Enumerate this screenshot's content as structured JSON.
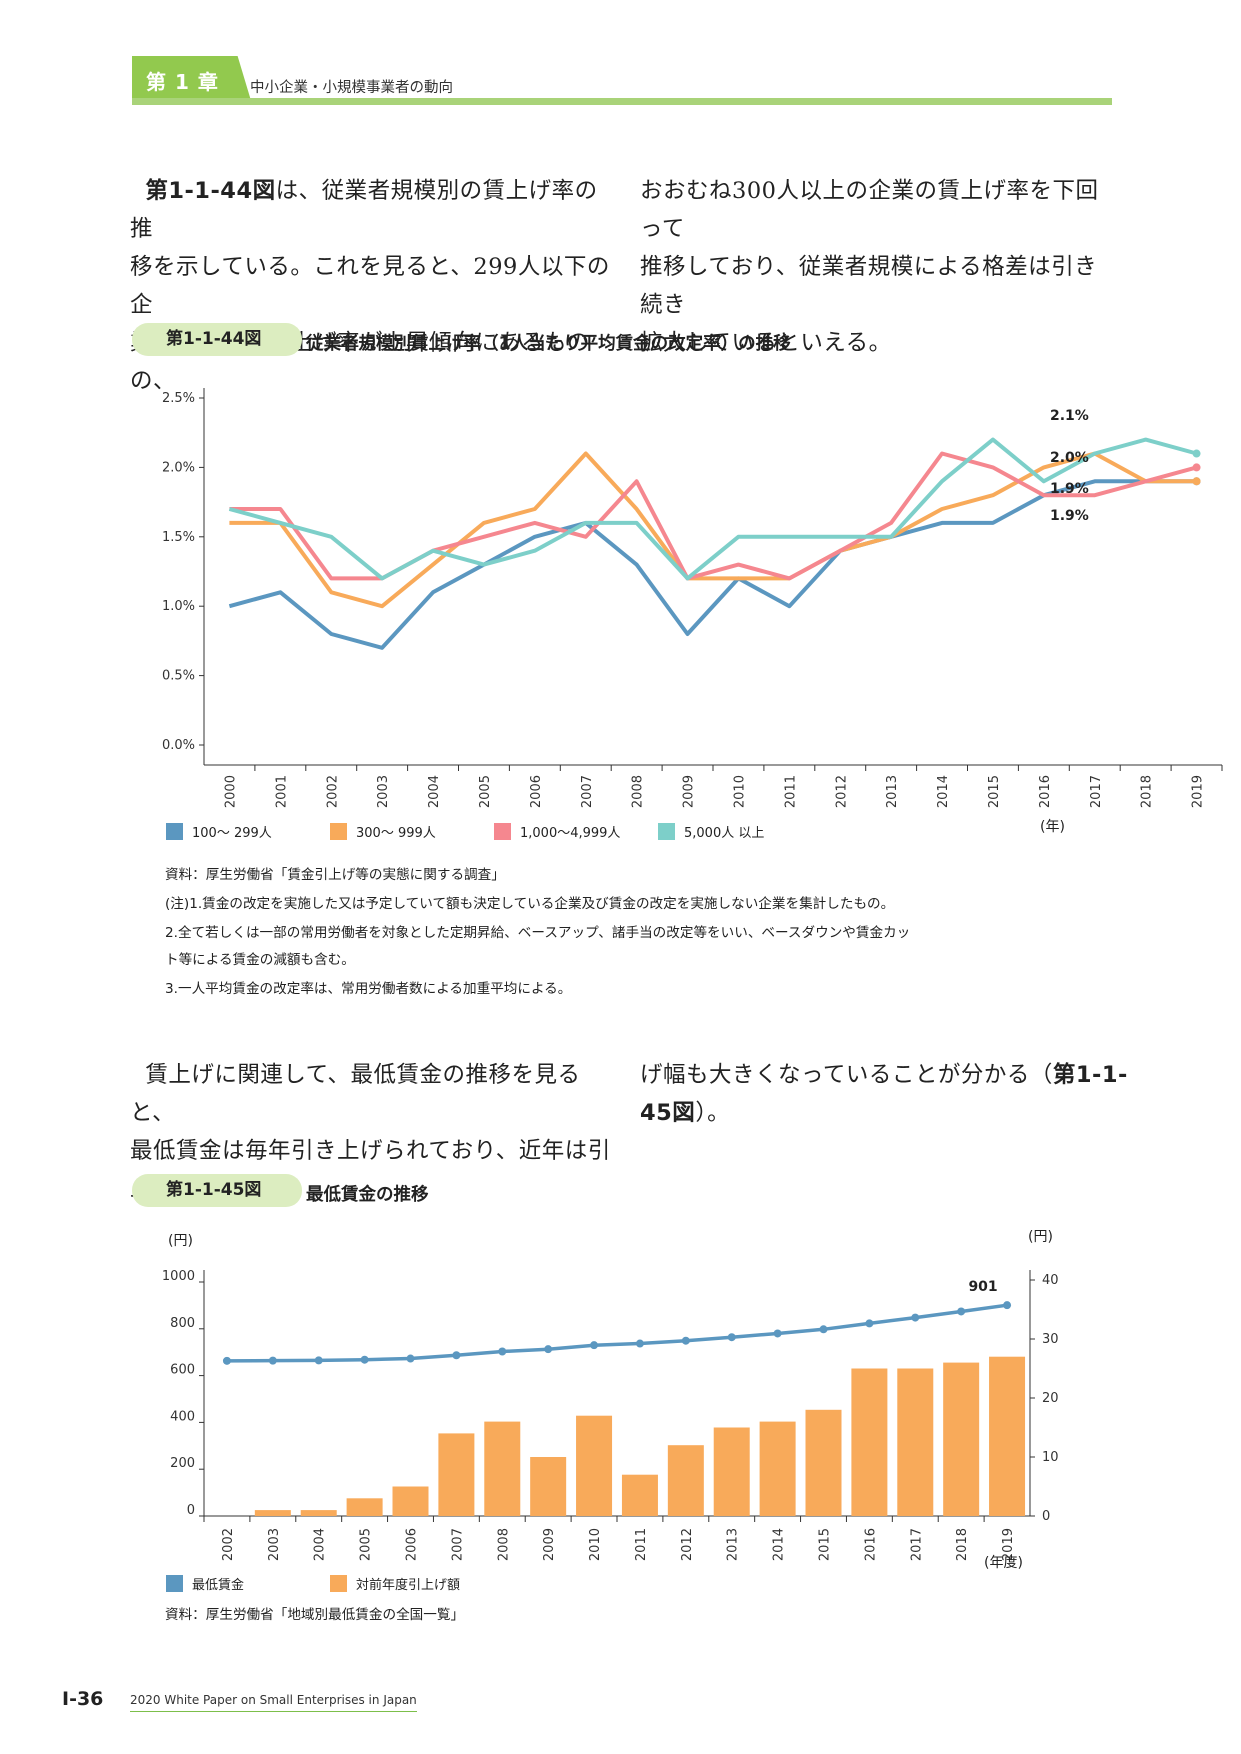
{
  "header": {
    "chapter_label": "第 1 章",
    "section_title": "中小企業・小規模事業者の動向"
  },
  "para1": {
    "left_ref": "第1-1-44図",
    "left_rest_line1": "は、従業者規模別の賃上げ率の推",
    "left_line2": "移を示している。これを見ると、299人以下の企",
    "left_line3": "業も足元では賃上げ率が上昇傾向にあるものの、",
    "right_line1": "おおむね300人以上の企業の賃上げ率を下回って",
    "right_line2": "推移しており、従業者規模による格差は引き続き",
    "right_line3": "拡大しているといえる。"
  },
  "fig44": {
    "tag": "第1-1-44図",
    "title": "従業者規模別賃上げ率（1人当たり平均賃金の改定率）の推移",
    "x_unit": "(年)",
    "end_labels": [
      "2.1%",
      "2.0%",
      "1.9%",
      "1.9%"
    ],
    "source": "資料：厚生労働省「賃金引上げ等の実態に関する調査」",
    "note1": "(注)1.賃金の改定を実施した又は予定していて額も決定している企業及び賃金の改定を実施しない企業を集計したもの。",
    "note2a": "2.全て若しくは一部の常用労働者を対象とした定期昇給、ベースアップ、諸手当の改定等をいい、ベースダウンや賃金カッ",
    "note2b": "ト等による賃金の減額も含む。",
    "note3": "3.一人平均賃金の改定率は、常用労働者数による加重平均による。"
  },
  "para2": {
    "left_line1": "賃上げに関連して、最低賃金の推移を見ると、",
    "left_line2": "最低賃金は毎年引き上げられており、近年は引上",
    "right_line1_a": "げ幅も大きくなっていることが分かる（",
    "right_line1_ref": "第1-1-",
    "right_line2_ref": "45図",
    "right_line2_b": "）。"
  },
  "fig45": {
    "tag": "第1-1-45図",
    "title": "最低賃金の推移",
    "left_unit": "(円)",
    "right_unit": "(円)",
    "x_unit": "(年度)",
    "last_label": "901",
    "source": "資料：厚生労働省「地域別最低賃金の全国一覧」"
  },
  "footer": {
    "page_number": "I-36",
    "publication": "2020 White Paper on Small Enterprises in Japan"
  },
  "chart_data": [
    {
      "type": "line",
      "title": "従業者規模別賃上げ率（1人当たり平均賃金の改定率）の推移",
      "categories": [
        "2000",
        "2001",
        "2002",
        "2003",
        "2004",
        "2005",
        "2006",
        "2007",
        "2008",
        "2009",
        "2010",
        "2011",
        "2012",
        "2013",
        "2014",
        "2015",
        "2016",
        "2017",
        "2018",
        "2019"
      ],
      "ylim": [
        0,
        2.5
      ],
      "yticks": [
        "0.0%",
        "0.5%",
        "1.0%",
        "1.5%",
        "2.0%",
        "2.5%"
      ],
      "ytick_values": [
        0,
        0.5,
        1.0,
        1.5,
        2.0,
        2.5
      ],
      "xlabel": "(年)",
      "legend_placement": "bottom",
      "grid": false,
      "series": [
        {
          "name": "100～ 299人",
          "color": "#5b97c0",
          "values": [
            1.0,
            1.1,
            0.8,
            0.7,
            1.1,
            1.3,
            1.5,
            1.6,
            1.3,
            0.8,
            1.2,
            1.0,
            1.4,
            1.5,
            1.6,
            1.6,
            1.8,
            1.9,
            1.9,
            1.9
          ]
        },
        {
          "name": "300～ 999人",
          "color": "#f8aa5a",
          "values": [
            1.6,
            1.6,
            1.1,
            1.0,
            1.3,
            1.6,
            1.7,
            2.1,
            1.7,
            1.2,
            1.2,
            1.2,
            1.4,
            1.5,
            1.7,
            1.8,
            2.0,
            2.1,
            1.9,
            1.9
          ]
        },
        {
          "name": "1,000～4,999人",
          "color": "#f5878f",
          "values": [
            1.7,
            1.7,
            1.2,
            1.2,
            1.4,
            1.5,
            1.6,
            1.5,
            1.9,
            1.2,
            1.3,
            1.2,
            1.4,
            1.6,
            2.1,
            2.0,
            1.8,
            1.8,
            1.9,
            2.0
          ]
        },
        {
          "name": "5,000人 以上",
          "color": "#7dcfc9",
          "values": [
            1.7,
            1.6,
            1.5,
            1.2,
            1.4,
            1.3,
            1.4,
            1.6,
            1.6,
            1.2,
            1.5,
            1.5,
            1.5,
            1.5,
            1.9,
            2.2,
            1.9,
            2.1,
            2.2,
            2.1
          ]
        }
      ]
    },
    {
      "type": "bar",
      "title": "最低賃金の推移",
      "categories": [
        "2002",
        "2003",
        "2004",
        "2005",
        "2006",
        "2007",
        "2008",
        "2009",
        "2010",
        "2011",
        "2012",
        "2013",
        "2014",
        "2015",
        "2016",
        "2017",
        "2018",
        "2019"
      ],
      "xlabel": "(年度)",
      "ylabel_left": "(円)",
      "ylabel_right": "(円)",
      "ylim_left": [
        0,
        1000
      ],
      "yticks_left": [
        0,
        200,
        400,
        600,
        800,
        1000
      ],
      "ylim_right": [
        0,
        40
      ],
      "yticks_right": [
        0,
        10,
        20,
        30,
        40
      ],
      "legend_placement": "bottom-left",
      "series": [
        {
          "name": "最低賃金",
          "type": "line",
          "axis": "left",
          "color": "#5b97c0",
          "values": [
            663,
            664,
            665,
            668,
            673,
            687,
            703,
            713,
            730,
            737,
            749,
            764,
            780,
            798,
            823,
            848,
            874,
            901
          ]
        },
        {
          "name": "対前年度引上げ額",
          "type": "bar",
          "axis": "right",
          "color": "#f8aa5a",
          "values": [
            0,
            1,
            1,
            3,
            5,
            14,
            16,
            10,
            17,
            7,
            12,
            15,
            16,
            18,
            25,
            25,
            26,
            27
          ]
        }
      ]
    }
  ]
}
